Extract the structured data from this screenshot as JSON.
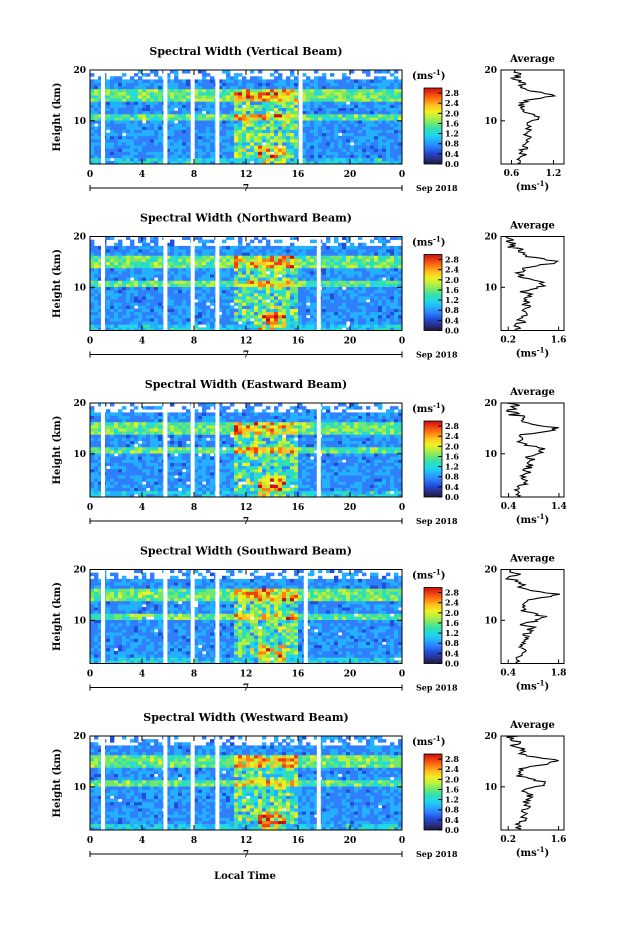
{
  "colors": {
    "scale": [
      "#1a1a3a",
      "#2d3090",
      "#1f4fd8",
      "#2f7fff",
      "#22b0ff",
      "#22d8e8",
      "#30e0b0",
      "#70e870",
      "#b8f040",
      "#f0f020",
      "#ffc020",
      "#ff8010",
      "#f04010",
      "#c81010"
    ],
    "background_value_color": "#2f60e0",
    "gap_color": "#ffffff"
  },
  "common": {
    "ylabel": "Height (km)",
    "xlabel": "Local Time",
    "date_label": "Sep 2018",
    "day_label": "7",
    "colorbar_unit": "(ms",
    "colorbar_unit_exp": "-1",
    "colorbar_unit_close": ")",
    "average_title": "Average",
    "average_xunit": "(ms",
    "average_xunit_exp": "-1",
    "average_xunit_close": ")"
  },
  "chart_data": [
    {
      "type": "heatmap",
      "title": "Spectral Width (Vertical Beam)",
      "x_ticks": [
        "0",
        "4",
        "8",
        "12",
        "16",
        "20",
        "0"
      ],
      "x_range": [
        0,
        24
      ],
      "y_ticks": [
        "20",
        "10"
      ],
      "y_range": [
        1.5,
        20
      ],
      "colorbar_ticks": [
        "2.8",
        "2.4",
        "2.0",
        "1.6",
        "1.2",
        "0.8",
        "0.4",
        "0.0"
      ],
      "colorbar_range": [
        0,
        3.0
      ],
      "data_gaps_hours": [
        1.0,
        5.8,
        7.9,
        9.8,
        16.2
      ],
      "profile": {
        "x_ticks": [
          "0.6",
          "1.2"
        ],
        "x_range": [
          0.45,
          1.35
        ],
        "y_ticks": [
          "20",
          "10"
        ],
        "y_range": [
          1.5,
          20
        ]
      }
    },
    {
      "type": "heatmap",
      "title": "Spectral Width (Northward Beam)",
      "x_ticks": [
        "0",
        "4",
        "8",
        "12",
        "16",
        "20",
        "0"
      ],
      "x_range": [
        0,
        24
      ],
      "y_ticks": [
        "20",
        "10"
      ],
      "y_range": [
        1.5,
        20
      ],
      "colorbar_ticks": [
        "2.8",
        "2.4",
        "2.0",
        "1.6",
        "1.2",
        "0.8",
        "0.4",
        "0.0"
      ],
      "colorbar_range": [
        0,
        3.0
      ],
      "data_gaps_hours": [
        1.0,
        5.8,
        7.9,
        9.8,
        17.6
      ],
      "profile": {
        "x_ticks": [
          "0.2",
          "1.6"
        ],
        "x_range": [
          0.0,
          1.75
        ],
        "y_ticks": [
          "20",
          "10"
        ],
        "y_range": [
          1.5,
          20
        ]
      }
    },
    {
      "type": "heatmap",
      "title": "Spectral Width (Eastward Beam)",
      "x_ticks": [
        "0",
        "4",
        "8",
        "12",
        "16",
        "20",
        "0"
      ],
      "x_range": [
        0,
        24
      ],
      "y_ticks": [
        "20",
        "10"
      ],
      "y_range": [
        1.5,
        20
      ],
      "colorbar_ticks": [
        "2.8",
        "2.4",
        "2.0",
        "1.6",
        "1.2",
        "0.8",
        "0.4",
        "0.0"
      ],
      "colorbar_range": [
        0,
        3.0
      ],
      "data_gaps_hours": [
        1.0,
        5.8,
        7.9,
        9.8,
        17.6
      ],
      "profile": {
        "x_ticks": [
          "0.4",
          "1.4"
        ],
        "x_range": [
          0.25,
          1.5
        ],
        "y_ticks": [
          "20",
          "10"
        ],
        "y_range": [
          1.5,
          20
        ]
      }
    },
    {
      "type": "heatmap",
      "title": "Spectral Width (Southward Beam)",
      "x_ticks": [
        "0",
        "4",
        "8",
        "12",
        "16",
        "20",
        "0"
      ],
      "x_range": [
        0,
        24
      ],
      "y_ticks": [
        "20",
        "10"
      ],
      "y_range": [
        1.5,
        20
      ],
      "colorbar_ticks": [
        "2.8",
        "2.4",
        "2.0",
        "1.6",
        "1.2",
        "0.8",
        "0.4",
        "0.0"
      ],
      "colorbar_range": [
        0,
        3.0
      ],
      "data_gaps_hours": [
        1.0,
        5.8,
        7.9,
        9.8,
        16.6
      ],
      "profile": {
        "x_ticks": [
          "0.4",
          "1.8"
        ],
        "x_range": [
          0.2,
          1.95
        ],
        "y_ticks": [
          "20",
          "10"
        ],
        "y_range": [
          1.5,
          20
        ]
      }
    },
    {
      "type": "heatmap",
      "title": "Spectral Width (Westward Beam)",
      "x_ticks": [
        "0",
        "4",
        "8",
        "12",
        "16",
        "20",
        "0"
      ],
      "x_range": [
        0,
        24
      ],
      "y_ticks": [
        "20",
        "10"
      ],
      "y_range": [
        1.5,
        20
      ],
      "colorbar_ticks": [
        "2.8",
        "2.4",
        "2.0",
        "1.6",
        "1.2",
        "0.8",
        "0.4",
        "0.0"
      ],
      "colorbar_range": [
        0,
        3.0
      ],
      "data_gaps_hours": [
        1.0,
        5.8,
        7.9,
        9.8,
        17.6
      ],
      "profile": {
        "x_ticks": [
          "0.2",
          "1.6"
        ],
        "x_range": [
          0.0,
          1.75
        ],
        "y_ticks": [
          "20",
          "10"
        ],
        "y_range": [
          1.5,
          20
        ]
      }
    }
  ]
}
